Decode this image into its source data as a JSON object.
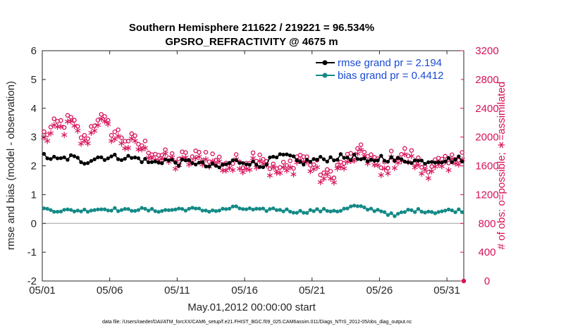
{
  "chart_data": {
    "type": "line",
    "title": "Southern Hemisphere 211622 / 219221 = 96.534%",
    "subtitle": "GPSRO_REFRACTIVITY @ 4675 m",
    "xlabel": "May.01,2012 00:00:00 start",
    "ylabel_left": "rmse and bias (model - observation)",
    "ylabel_right": "# of obs: o=possible; ∗=assimilated",
    "footnote": "data file: /Users/raeder/DAI/ATM_forcXX/CAM6_setup/f.e21.FHIST_BGC.f09_025.CAM6assim.011/Diags_NTrS_2012-05/obs_diag_output.nc",
    "x_range_days": [
      0,
      31.25
    ],
    "x_ticks": [
      {
        "day": 0,
        "label": "05/01"
      },
      {
        "day": 5,
        "label": "05/06"
      },
      {
        "day": 10,
        "label": "05/11"
      },
      {
        "day": 15,
        "label": "05/16"
      },
      {
        "day": 20,
        "label": "05/21"
      },
      {
        "day": 25,
        "label": "05/26"
      },
      {
        "day": 30,
        "label": "05/31"
      }
    ],
    "y_left_range": [
      -2,
      6
    ],
    "y_left_ticks": [
      "-2",
      "-1",
      "0",
      "1",
      "2",
      "3",
      "4",
      "5",
      "6"
    ],
    "y_right_range": [
      0,
      3200
    ],
    "y_right_ticks": [
      "0",
      "400",
      "800",
      "1200",
      "1600",
      "2000",
      "2400",
      "2800",
      "3200"
    ],
    "zero_line": 0,
    "colors": {
      "rmse": "#000000",
      "bias": "#138a86",
      "obs": "#d6115a",
      "zero": "#bdbdbd",
      "legend_text": "#1a4bd6"
    },
    "series": [
      {
        "name": "rmse grand pr = 2.194",
        "key": "rmse",
        "axis": "left",
        "base": [
          2.35,
          2.2,
          2.3,
          2.15,
          2.3,
          2.3,
          2.3,
          2.25,
          2.1,
          2.2,
          2.1,
          2.15,
          2.0,
          1.95,
          2.15,
          2.15,
          2.0,
          2.25,
          2.35,
          2.1,
          2.2,
          2.25,
          2.3,
          2.3,
          2.1,
          2.3,
          2.2,
          2.2,
          2.15,
          2.2,
          2.2,
          2.25
        ]
      },
      {
        "name": "bias grand pr = 0.4412",
        "key": "bias",
        "axis": "left",
        "base": [
          0.5,
          0.45,
          0.45,
          0.45,
          0.5,
          0.5,
          0.45,
          0.5,
          0.45,
          0.45,
          0.5,
          0.5,
          0.45,
          0.45,
          0.55,
          0.5,
          0.45,
          0.5,
          0.45,
          0.4,
          0.45,
          0.45,
          0.45,
          0.6,
          0.5,
          0.45,
          0.25,
          0.45,
          0.45,
          0.4,
          0.45,
          0.45
        ]
      },
      {
        "name": "possible obs",
        "key": "possible",
        "axis": "right",
        "base": [
          2040,
          2180,
          2230,
          1960,
          2300,
          2110,
          1990,
          1920,
          1830,
          1720,
          1710,
          1720,
          1770,
          1680,
          1650,
          1690,
          1800,
          1560,
          1580,
          1760,
          1620,
          1460,
          1620,
          1770,
          1800,
          1560,
          1760,
          1780,
          1600,
          1640,
          1620,
          1840
        ]
      },
      {
        "name": "assimilated obs",
        "key": "assimilated",
        "axis": "right",
        "base": [
          1970,
          2100,
          2150,
          1890,
          2210,
          2030,
          1920,
          1850,
          1760,
          1660,
          1650,
          1660,
          1710,
          1620,
          1590,
          1630,
          1740,
          1510,
          1520,
          1690,
          1560,
          1410,
          1560,
          1700,
          1740,
          1510,
          1700,
          1720,
          1550,
          1580,
          1560,
          1770
        ]
      }
    ],
    "legend": {
      "position": "top-right",
      "entries": [
        "rmse grand pr = 2.194",
        "bias grand pr = 0.4412"
      ]
    }
  }
}
